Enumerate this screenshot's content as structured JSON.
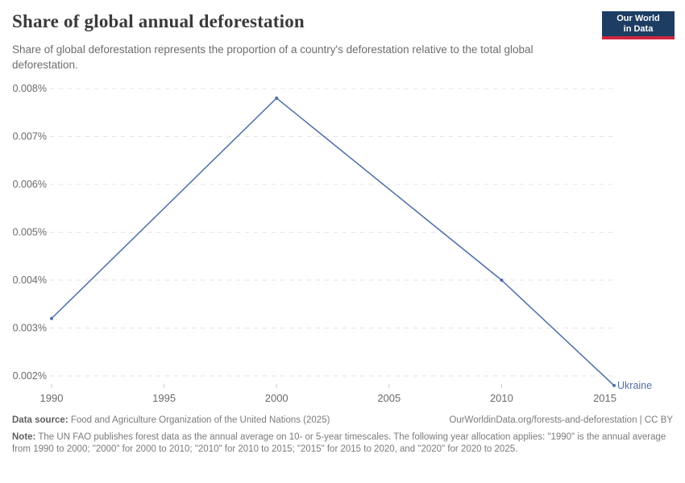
{
  "header": {
    "title": "Share of global annual deforestation",
    "subtitle": "Share of global deforestation represents the proportion of a country's deforestation relative to the total global deforestation.",
    "logo_line1": "Our World",
    "logo_line2": "in Data"
  },
  "chart_data": {
    "type": "line",
    "title": "Share of global annual deforestation",
    "entity_label": "Ukraine",
    "x": [
      1990,
      2000,
      2010,
      2015
    ],
    "series": [
      {
        "name": "Ukraine",
        "values": [
          0.0032,
          0.0078,
          0.004,
          0.0018
        ],
        "color": "#4e6fa8"
      }
    ],
    "unit": "%",
    "xlabel": "",
    "ylabel": "",
    "xlim": [
      1990,
      2015
    ],
    "ylim": [
      0.002,
      0.008
    ],
    "xticks": [
      1990,
      1995,
      2000,
      2005,
      2010,
      2015
    ],
    "yticks": [
      {
        "value": 0.002,
        "label": "0.002%"
      },
      {
        "value": 0.003,
        "label": "0.003%"
      },
      {
        "value": 0.004,
        "label": "0.004%"
      },
      {
        "value": 0.005,
        "label": "0.005%"
      },
      {
        "value": 0.006,
        "label": "0.006%"
      },
      {
        "value": 0.007,
        "label": "0.007%"
      },
      {
        "value": 0.008,
        "label": "0.008%"
      }
    ],
    "grid": "horizontal-dashed",
    "legend": "end-of-line-label"
  },
  "footer": {
    "datasource_label": "Data source:",
    "datasource_text": " Food and Agriculture Organization of the United Nations (2025)",
    "attribution": "OurWorldinData.org/forests-and-deforestation | CC BY",
    "note_label": "Note:",
    "note_text": " The UN FAO publishes forest data as the annual average on 10- or 5-year timescales. The following year allocation applies: \"1990\" is the annual average from 1990 to 2000; \"2000\" for 2000 to 2010; \"2010\" for 2010 to 2015; \"2015\" for 2015 to 2020, and \"2020\" for 2020 to 2025."
  },
  "colors": {
    "line": "#4e6fa8",
    "grid": "#e3e3e3",
    "tick": "#cccccc",
    "axis_text": "#6b6b6b",
    "logo_bg": "#1d3d63",
    "logo_accent": "#cf2540"
  }
}
